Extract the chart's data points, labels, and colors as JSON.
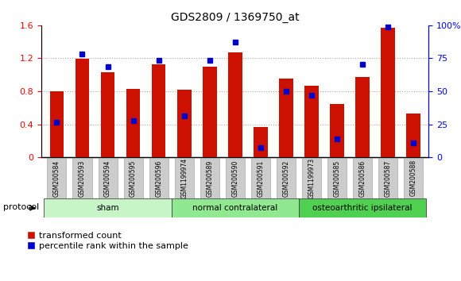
{
  "title": "GDS2809 / 1369750_at",
  "categories": [
    "GSM200584",
    "GSM200593",
    "GSM200594",
    "GSM200595",
    "GSM200596",
    "GSM1199974",
    "GSM200589",
    "GSM200590",
    "GSM200591",
    "GSM200592",
    "GSM1199973",
    "GSM200585",
    "GSM200586",
    "GSM200587",
    "GSM200588"
  ],
  "red_values": [
    0.8,
    1.19,
    1.03,
    0.83,
    1.13,
    0.82,
    1.1,
    1.27,
    0.37,
    0.95,
    0.87,
    0.65,
    0.97,
    1.57,
    0.53
  ],
  "blue_left_values": [
    0.43,
    1.25,
    1.1,
    0.44,
    1.18,
    0.5,
    1.18,
    1.4,
    0.12,
    0.8,
    0.75,
    0.22,
    1.13,
    1.58,
    0.18
  ],
  "blue_pct": [
    27,
    78,
    69,
    27,
    74,
    31,
    74,
    88,
    8,
    50,
    47,
    14,
    71,
    99,
    11
  ],
  "ylim_left": [
    0,
    1.6
  ],
  "ylim_right": [
    0,
    100
  ],
  "yticks_left": [
    0,
    0.4,
    0.8,
    1.2,
    1.6
  ],
  "yticks_right": [
    0,
    25,
    50,
    75,
    100
  ],
  "ytick_labels_right": [
    "0",
    "25",
    "50",
    "75",
    "100%"
  ],
  "groups": [
    {
      "label": "sham",
      "start": 0,
      "end": 4,
      "color": "#c8f5c8"
    },
    {
      "label": "normal contralateral",
      "start": 5,
      "end": 9,
      "color": "#90e890"
    },
    {
      "label": "osteoarthritic ipsilateral",
      "start": 10,
      "end": 14,
      "color": "#50d050"
    }
  ],
  "protocol_label": "protocol",
  "red_color": "#cc1100",
  "blue_color": "#0000cc",
  "bar_width": 0.55,
  "grid_color": "#aaaaaa",
  "bg_color": "#ffffff",
  "tick_bg_color": "#cccccc",
  "legend_red": "transformed count",
  "legend_blue": "percentile rank within the sample"
}
